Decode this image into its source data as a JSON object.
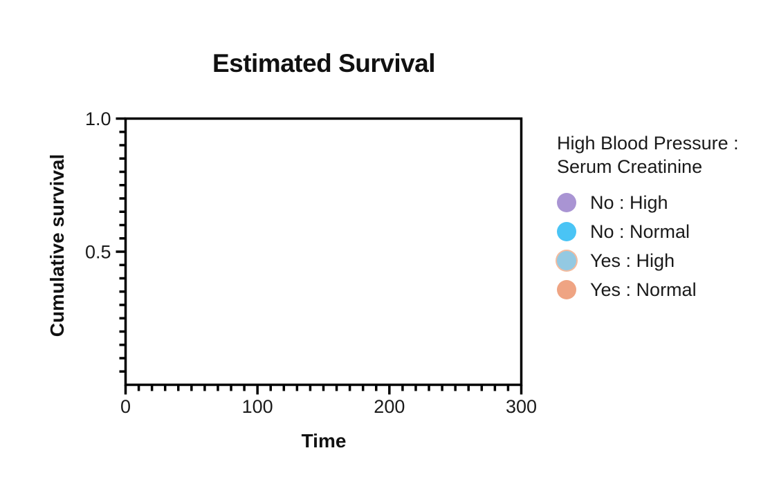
{
  "colors": {
    "background": "#ffffff",
    "axis": "#000000",
    "text": "#1a1a1a",
    "title": "#111111"
  },
  "chart_data": {
    "type": "line",
    "title": "Estimated Survival",
    "xlabel": "Time",
    "ylabel": "Cumulative survival",
    "xlim": [
      0,
      300
    ],
    "ylim": [
      0.0,
      1.0
    ],
    "x_major_ticks": [
      0,
      100,
      200,
      300
    ],
    "x_tick_labels": [
      "0",
      "100",
      "200",
      "300"
    ],
    "x_minor_tick_step": 10,
    "y_major_ticks": [
      1.0,
      0.5
    ],
    "y_tick_labels": [
      "1.0",
      "0.5"
    ],
    "y_minor_tick_step": 0.05,
    "grid": false,
    "plot_area_empty": true,
    "legend_position": "right-outside",
    "legend_title": [
      "High Blood Pressure :",
      "Serum Creatinine"
    ],
    "series": [
      {
        "name": "No : High",
        "color": "#a994d3",
        "x": [],
        "y": []
      },
      {
        "name": "No : Normal",
        "color": "#4ac4f5",
        "x": [],
        "y": []
      },
      {
        "name": "Yes : High",
        "color": "#93c9e2",
        "edge_color": "#f3bb9e",
        "x": [],
        "y": []
      },
      {
        "name": "Yes : Normal",
        "color": "#efa483",
        "x": [],
        "y": []
      }
    ]
  }
}
